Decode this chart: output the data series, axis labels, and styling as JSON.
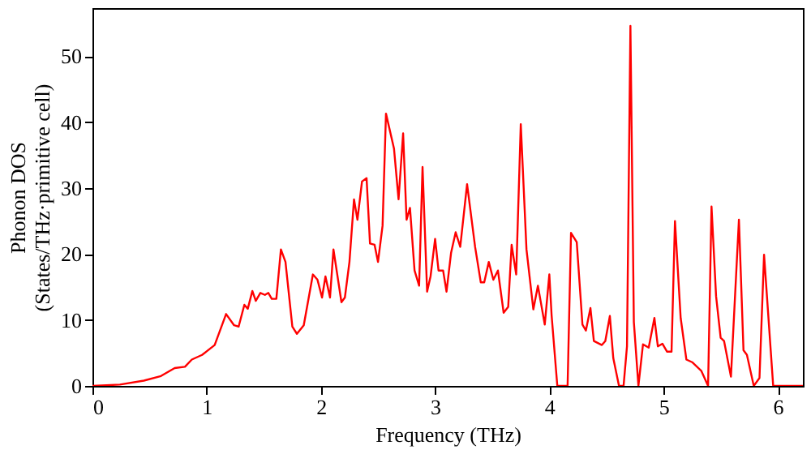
{
  "chart_data": {
    "type": "line",
    "xlabel": "Frequency (THz)",
    "ylabel": "Phonon DOS\n(States/THz·primitive cell)",
    "x": [
      0,
      0.24,
      0.45,
      0.6,
      0.72,
      0.81,
      0.87,
      0.96,
      1.07,
      1.17,
      1.24,
      1.28,
      1.33,
      1.36,
      1.4,
      1.43,
      1.47,
      1.51,
      1.54,
      1.57,
      1.61,
      1.65,
      1.69,
      1.75,
      1.79,
      1.85,
      1.93,
      1.97,
      2.01,
      2.04,
      2.08,
      2.11,
      2.18,
      2.21,
      2.25,
      2.29,
      2.32,
      2.36,
      2.4,
      2.43,
      2.47,
      2.5,
      2.54,
      2.57,
      2.64,
      2.68,
      2.72,
      2.75,
      2.78,
      2.82,
      2.86,
      2.89,
      2.93,
      2.96,
      3.0,
      3.03,
      3.07,
      3.1,
      3.14,
      3.18,
      3.22,
      3.28,
      3.35,
      3.4,
      3.43,
      3.47,
      3.51,
      3.55,
      3.6,
      3.64,
      3.67,
      3.71,
      3.75,
      3.8,
      3.86,
      3.9,
      3.96,
      4.0,
      4.02,
      4.07,
      4.16,
      4.19,
      4.24,
      4.29,
      4.32,
      4.36,
      4.39,
      4.46,
      4.49,
      4.53,
      4.56,
      4.61,
      4.65,
      4.68,
      4.71,
      4.74,
      4.78,
      4.82,
      4.87,
      4.92,
      4.95,
      4.99,
      5.03,
      5.07,
      5.1,
      5.15,
      5.2,
      5.25,
      5.33,
      5.39,
      5.42,
      5.46,
      5.5,
      5.53,
      5.59,
      5.66,
      5.7,
      5.73,
      5.79,
      5.84,
      5.88,
      5.96,
      6.22
    ],
    "series": [
      {
        "color": "#ff0000",
        "values": [
          0,
          0.2,
          0.8,
          1.5,
          2.7,
          2.9,
          4,
          4.7,
          6.2,
          10.9,
          9.2,
          9,
          12.3,
          11.7,
          14.4,
          12.9,
          14.1,
          13.8,
          14.1,
          13.2,
          13.2,
          20.7,
          18.8,
          9,
          7.9,
          9.2,
          16.9,
          16.1,
          13.4,
          16.6,
          13.4,
          20.7,
          12.7,
          13.4,
          18.8,
          28.3,
          25.2,
          31,
          31.5,
          21.6,
          21.4,
          18.8,
          24.3,
          41.3,
          36,
          28.3,
          38.3,
          25.2,
          27,
          17.5,
          15.2,
          33.2,
          14.3,
          16.6,
          22.3,
          17.5,
          17.5,
          14.3,
          20.2,
          23.3,
          21.1,
          30.6,
          21.1,
          15.7,
          15.7,
          18.8,
          16.1,
          17.5,
          11.1,
          12,
          21.4,
          16.9,
          39.7,
          20.7,
          11.6,
          15.2,
          9.3,
          16.9,
          10.7,
          0,
          0,
          23.2,
          21.8,
          9.3,
          8.4,
          11.8,
          6.8,
          6.2,
          6.8,
          10.6,
          4.2,
          0,
          0,
          6,
          54.6,
          9.7,
          0,
          6.3,
          5.8,
          10.3,
          6,
          6.4,
          5.2,
          5.2,
          25,
          10.3,
          4,
          3.6,
          2.3,
          0,
          27.2,
          13.6,
          7.3,
          6.8,
          1.4,
          25.2,
          5.4,
          4.7,
          0,
          1.2,
          19.9,
          0,
          0
        ]
      }
    ],
    "xlim": [
      0,
      6.22
    ],
    "ylim": [
      0,
      57.3
    ],
    "xticks": [
      0,
      1,
      2,
      3,
      4,
      5,
      6
    ],
    "yticks": [
      0,
      10,
      20,
      30,
      40,
      50
    ],
    "grid": false,
    "line_style": "solid",
    "marker": "none"
  }
}
